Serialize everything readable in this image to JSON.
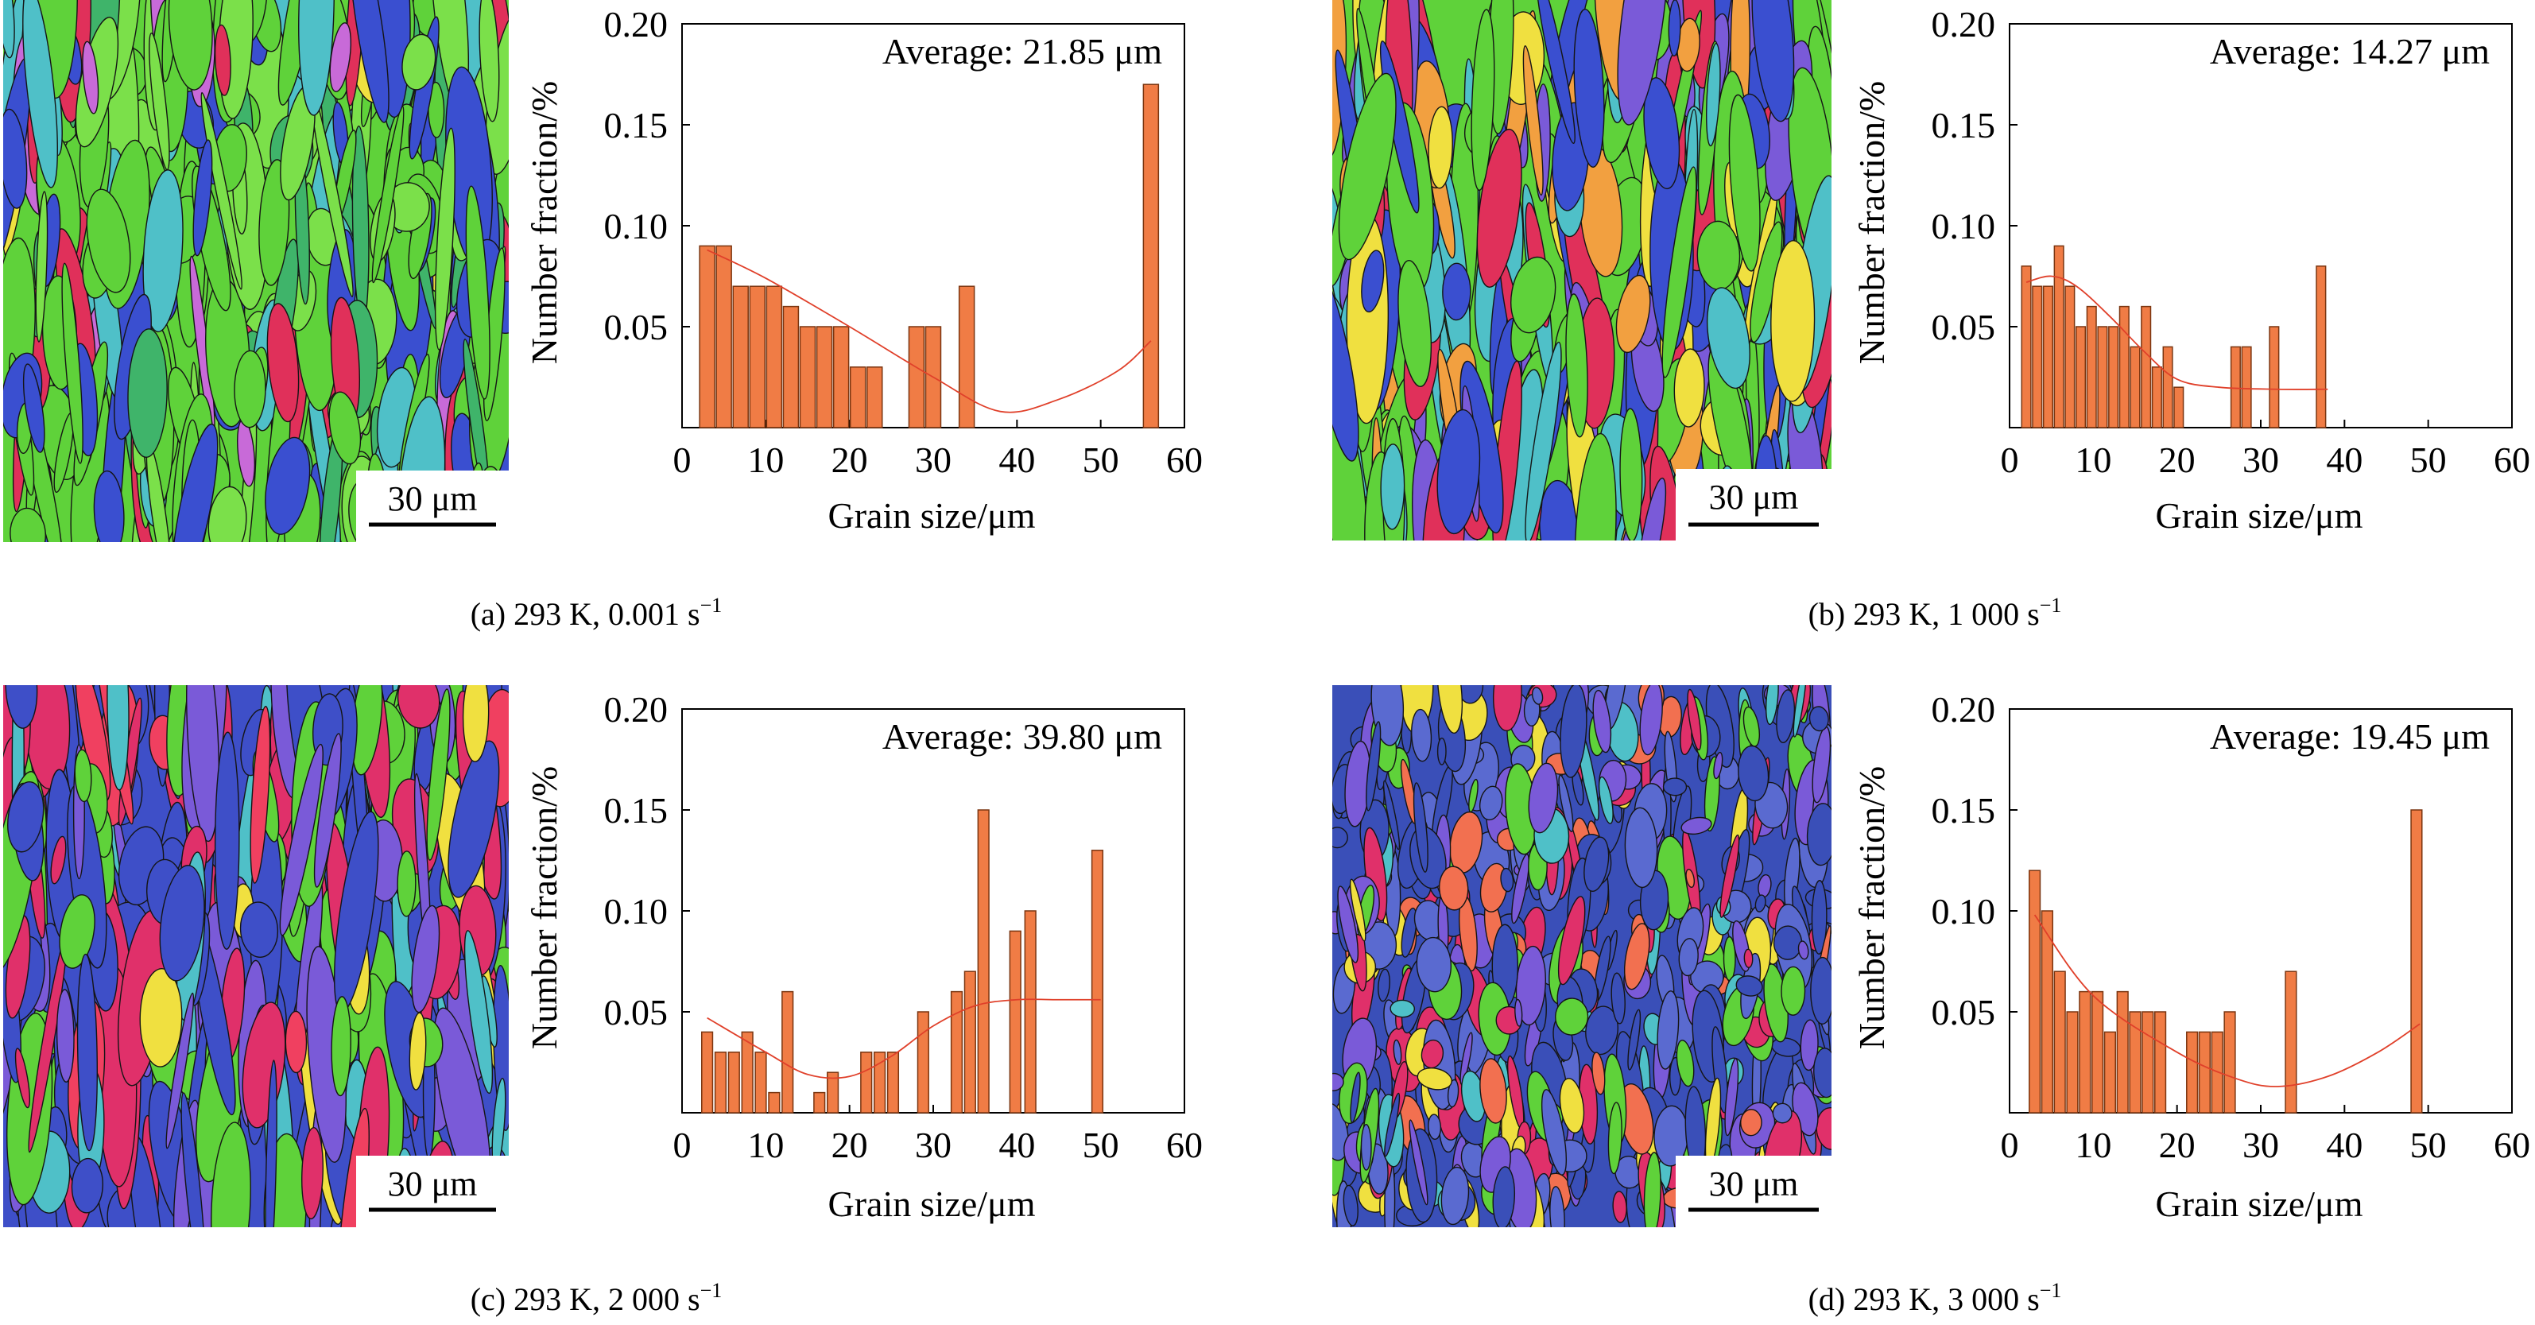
{
  "figure": {
    "panels": [
      {
        "id": "a",
        "caption": "(a) 293 K, 0.001 s",
        "caption_sup": "−1",
        "average": "Average: 21.85 μm",
        "scale_bar": "30 μm",
        "map_palette": "green"
      },
      {
        "id": "b",
        "caption": "(b) 293 K, 1 000 s",
        "caption_sup": "−1",
        "average": "Average: 14.27 μm",
        "scale_bar": "30 μm",
        "map_palette": "mixed"
      },
      {
        "id": "c",
        "caption": "(c) 293 K, 2 000 s",
        "caption_sup": "−1",
        "average": "Average: 39.80 μm",
        "scale_bar": "30 μm",
        "map_palette": "blue-red"
      },
      {
        "id": "d",
        "caption": "(d) 293 K, 3 000 s",
        "caption_sup": "−1",
        "average": "Average: 19.45 μm",
        "scale_bar": "30 μm",
        "map_palette": "fine"
      }
    ]
  },
  "colors": {
    "bar_fill": "#f07c45",
    "bar_stroke": "#7a3510",
    "fit_line": "#e0402a",
    "grain_boundary": "#151515"
  },
  "chart_data": [
    {
      "type": "bar",
      "title": "",
      "xlabel": "Grain size/μm",
      "ylabel": "Number fraction/%",
      "xlim": [
        0,
        60
      ],
      "ylim": [
        0,
        0.2
      ],
      "xticks": [
        "0",
        "10",
        "20",
        "30",
        "40",
        "50",
        "60"
      ],
      "yticks": [
        "0.05",
        "0.10",
        "0.15",
        "0.20"
      ],
      "bar_width": 1.8,
      "x": [
        3,
        5,
        7,
        9,
        11,
        13,
        15,
        17,
        19,
        21,
        23,
        28,
        30,
        34,
        56
      ],
      "values": [
        0.09,
        0.09,
        0.07,
        0.07,
        0.07,
        0.06,
        0.05,
        0.05,
        0.05,
        0.03,
        0.03,
        0.05,
        0.05,
        0.07,
        0.17
      ],
      "fit": [
        [
          3,
          0.088
        ],
        [
          10,
          0.074
        ],
        [
          20,
          0.05
        ],
        [
          30,
          0.025
        ],
        [
          38,
          0.008
        ],
        [
          45,
          0.014
        ],
        [
          52,
          0.028
        ],
        [
          56,
          0.043
        ]
      ]
    },
    {
      "type": "bar",
      "title": "",
      "xlabel": "Grain size/μm",
      "ylabel": "Number fraction/%",
      "xlim": [
        0,
        60
      ],
      "ylim": [
        0,
        0.2
      ],
      "xticks": [
        "0",
        "10",
        "20",
        "30",
        "40",
        "50",
        "60"
      ],
      "yticks": [
        "0.05",
        "0.10",
        "0.15",
        "0.20"
      ],
      "bar_width": 1.1,
      "x": [
        2,
        3.3,
        4.6,
        5.9,
        7.2,
        8.5,
        9.8,
        11.1,
        12.4,
        13.7,
        15,
        16.3,
        17.6,
        18.9,
        20.2,
        27,
        28.3,
        31.6,
        37.2
      ],
      "values": [
        0.08,
        0.07,
        0.07,
        0.09,
        0.07,
        0.05,
        0.06,
        0.05,
        0.05,
        0.06,
        0.04,
        0.06,
        0.03,
        0.04,
        0.02,
        0.04,
        0.04,
        0.05,
        0.08
      ],
      "fit": [
        [
          2,
          0.072
        ],
        [
          5,
          0.075
        ],
        [
          8,
          0.07
        ],
        [
          12,
          0.055
        ],
        [
          16,
          0.038
        ],
        [
          20,
          0.024
        ],
        [
          25,
          0.02
        ],
        [
          32,
          0.019
        ],
        [
          38,
          0.019
        ]
      ]
    },
    {
      "type": "bar",
      "title": "",
      "xlabel": "Grain size/μm",
      "ylabel": "Number fraction/%",
      "xlim": [
        0,
        60
      ],
      "ylim": [
        0,
        0.2
      ],
      "xticks": [
        "0",
        "10",
        "20",
        "30",
        "40",
        "50",
        "60"
      ],
      "yticks": [
        "0.05",
        "0.10",
        "0.15",
        "0.20"
      ],
      "bar_width": 1.3,
      "x": [
        3,
        4.6,
        6.2,
        7.8,
        9.4,
        11,
        12.6,
        16.4,
        18,
        22,
        23.6,
        25.2,
        28.8,
        32.8,
        34.4,
        36,
        39.8,
        41.6,
        49.6
      ],
      "values": [
        0.04,
        0.03,
        0.03,
        0.04,
        0.03,
        0.01,
        0.06,
        0.01,
        0.02,
        0.03,
        0.03,
        0.03,
        0.05,
        0.06,
        0.07,
        0.15,
        0.09,
        0.1,
        0.13
      ],
      "fit": [
        [
          3,
          0.047
        ],
        [
          10,
          0.03
        ],
        [
          15,
          0.019
        ],
        [
          20,
          0.018
        ],
        [
          25,
          0.028
        ],
        [
          30,
          0.043
        ],
        [
          35,
          0.053
        ],
        [
          40,
          0.056
        ],
        [
          45,
          0.056
        ],
        [
          50,
          0.056
        ]
      ]
    },
    {
      "type": "bar",
      "title": "",
      "xlabel": "Grain size/μm",
      "ylabel": "Number fraction/%",
      "xlim": [
        0,
        60
      ],
      "ylim": [
        0,
        0.2
      ],
      "xticks": [
        "0",
        "10",
        "20",
        "30",
        "40",
        "50",
        "60"
      ],
      "yticks": [
        "0.05",
        "0.10",
        "0.15",
        "0.20"
      ],
      "bar_width": 1.3,
      "x": [
        3,
        4.5,
        6,
        7.5,
        9,
        10.5,
        12,
        13.5,
        15,
        16.5,
        18,
        21.8,
        23.3,
        24.8,
        26.3,
        33.6,
        48.6
      ],
      "values": [
        0.12,
        0.1,
        0.07,
        0.05,
        0.06,
        0.06,
        0.04,
        0.06,
        0.05,
        0.05,
        0.05,
        0.04,
        0.04,
        0.04,
        0.05,
        0.07,
        0.15
      ],
      "fit": [
        [
          3,
          0.098
        ],
        [
          10,
          0.058
        ],
        [
          20,
          0.03
        ],
        [
          27,
          0.017
        ],
        [
          32,
          0.013
        ],
        [
          38,
          0.018
        ],
        [
          44,
          0.03
        ],
        [
          49,
          0.044
        ]
      ]
    }
  ]
}
